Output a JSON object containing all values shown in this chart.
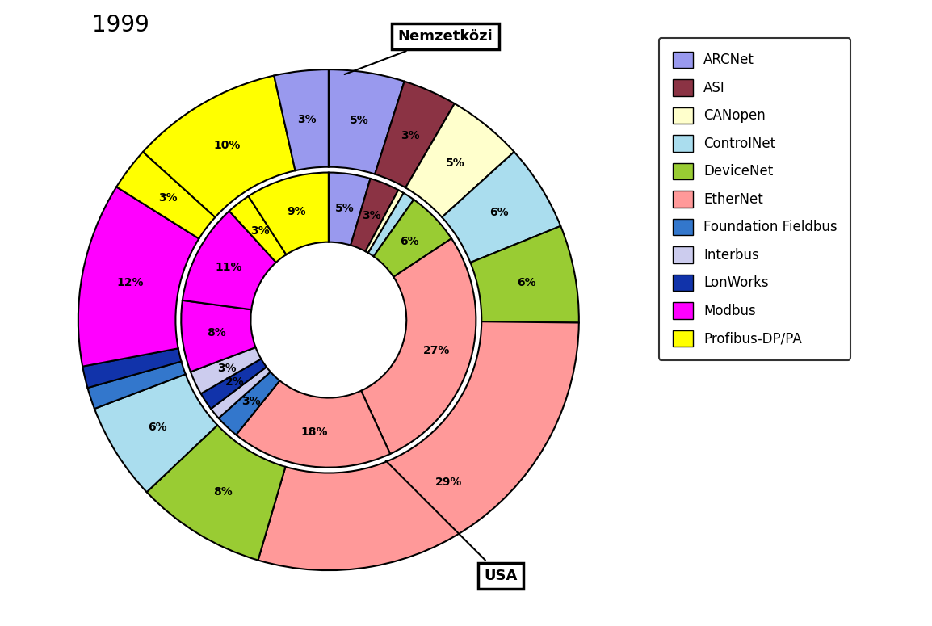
{
  "title": "1999",
  "inner_label": "Nemzetközi",
  "outer_label": "USA",
  "colors": {
    "ARCNet": "#9999EE",
    "ASI": "#8B3344",
    "CANopen": "#FFFFCC",
    "ControlNet": "#AADDEE",
    "DeviceNet": "#99CC33",
    "EtherNet": "#FF9999",
    "Foundation Fieldbus": "#3377CC",
    "Interbus": "#CCCCEE",
    "LonWorks": "#1133AA",
    "Modbus": "#FF00FF",
    "Profibus-DP/PA": "#FFFF00"
  },
  "outer_segments": [
    [
      "ARCNet",
      7
    ],
    [
      "ASI",
      5
    ],
    [
      "CANopen",
      7
    ],
    [
      "ControlNet",
      8
    ],
    [
      "DeviceNet",
      9
    ],
    [
      "EtherNet",
      42
    ],
    [
      "DeviceNet",
      12
    ],
    [
      "ControlNet",
      9
    ],
    [
      "Foundation Fieldbus",
      2
    ],
    [
      "LonWorks",
      2
    ],
    [
      "Modbus",
      17
    ],
    [
      "Profibus-DP/PA",
      4
    ],
    [
      "Profibus-DP/PA",
      14
    ],
    [
      "ARCNet",
      5
    ]
  ],
  "inner_segments": [
    [
      "ARCNet",
      7
    ],
    [
      "ASI",
      5
    ],
    [
      "CANopen",
      1
    ],
    [
      "ControlNet",
      2
    ],
    [
      "DeviceNet",
      9
    ],
    [
      "EtherNet",
      42
    ],
    [
      "EtherNet",
      27
    ],
    [
      "Foundation Fieldbus",
      4
    ],
    [
      "Interbus",
      2
    ],
    [
      "LonWorks",
      3
    ],
    [
      "Interbus",
      4
    ],
    [
      "Modbus",
      12
    ],
    [
      "Modbus",
      17
    ],
    [
      "Profibus-DP/PA",
      4
    ],
    [
      "Profibus-DP/PA",
      14
    ]
  ],
  "legend_order": [
    "ARCNet",
    "ASI",
    "CANopen",
    "ControlNet",
    "DeviceNet",
    "EtherNet",
    "Foundation Fieldbus",
    "Interbus",
    "LonWorks",
    "Modbus",
    "Profibus-DP/PA"
  ]
}
